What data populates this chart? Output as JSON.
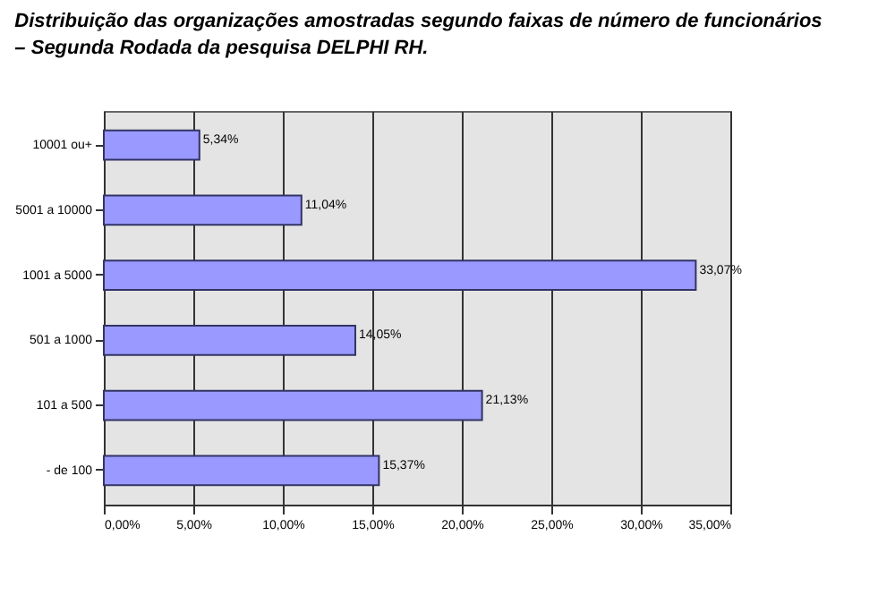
{
  "chart_data": {
    "type": "bar",
    "orientation": "horizontal",
    "title": "Distribuição das organizações amostradas segundo faixas de número de funcionários",
    "subtitle": "– Segunda Rodada da pesquisa DELPHI RH.",
    "categories": [
      "10001 ou+",
      "5001 a 10000",
      "1001 a 5000",
      "501 a 1000",
      "101 a 500",
      "- de 100"
    ],
    "values": [
      5.34,
      11.04,
      33.07,
      14.05,
      21.13,
      15.37
    ],
    "value_labels": [
      "5,34%",
      "11,04%",
      "33,07%",
      "14,05%",
      "21,13%",
      "15,37%"
    ],
    "color": "#9999ff",
    "xlim": [
      0,
      35
    ],
    "xticks": [
      {
        "value": 0,
        "label": "0,00%"
      },
      {
        "value": 5,
        "label": "5,00%"
      },
      {
        "value": 10,
        "label": "10,00%"
      },
      {
        "value": 15,
        "label": "15,00%"
      },
      {
        "value": 20,
        "label": "20,00%"
      },
      {
        "value": 25,
        "label": "25,00%"
      },
      {
        "value": 30,
        "label": "30,00%"
      },
      {
        "value": 35,
        "label": "35,00%"
      }
    ],
    "grid": "x"
  }
}
